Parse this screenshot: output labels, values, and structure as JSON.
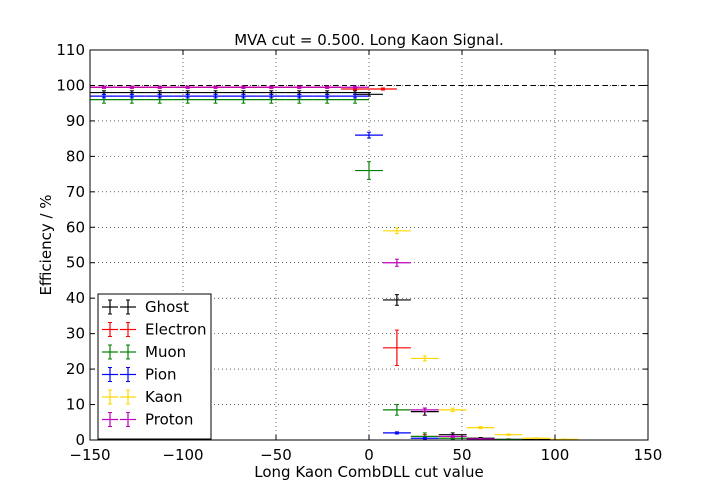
{
  "chart_data": {
    "type": "scatter",
    "title": "MVA cut = 0.500. Long Kaon Signal.",
    "xlabel": "Long Kaon CombDLL cut value",
    "ylabel": "Efficiency / %",
    "xlim": [
      -150,
      150
    ],
    "ylim": [
      0,
      110
    ],
    "xticks": [
      -150,
      -100,
      -50,
      0,
      50,
      100,
      150
    ],
    "yticks": [
      0,
      10,
      20,
      30,
      40,
      50,
      60,
      70,
      80,
      90,
      100,
      110
    ],
    "grid": true,
    "reference_line": {
      "y": 100,
      "style": "dashed"
    },
    "legend": {
      "position": "lower-left"
    },
    "bin_halfwidth": 7.5,
    "series": [
      {
        "name": "Ghost",
        "color": "#000000",
        "points": [
          {
            "x": -142.5,
            "y": 98,
            "ey": 0.5
          },
          {
            "x": -127.5,
            "y": 98,
            "ey": 0.5
          },
          {
            "x": -112.5,
            "y": 98,
            "ey": 0.5
          },
          {
            "x": -97.5,
            "y": 98,
            "ey": 0.5
          },
          {
            "x": -82.5,
            "y": 98,
            "ey": 0.5
          },
          {
            "x": -67.5,
            "y": 98,
            "ey": 0.5
          },
          {
            "x": -52.5,
            "y": 98,
            "ey": 0.5
          },
          {
            "x": -37.5,
            "y": 98,
            "ey": 0.5
          },
          {
            "x": -22.5,
            "y": 98,
            "ey": 0.5
          },
          {
            "x": -7.5,
            "y": 98,
            "ey": 0.5
          },
          {
            "x": 0,
            "y": 97.5,
            "ey": 0.5
          },
          {
            "x": 15,
            "y": 39.5,
            "ey": 1.5
          },
          {
            "x": 30,
            "y": 8,
            "ey": 1
          },
          {
            "x": 45,
            "y": 1.5,
            "ey": 0.5
          },
          {
            "x": 60,
            "y": 0.5,
            "ey": 0.2
          },
          {
            "x": 75,
            "y": 0.2,
            "ey": 0.1
          },
          {
            "x": 90,
            "y": 0.1,
            "ey": 0.05
          }
        ]
      },
      {
        "name": "Electron",
        "color": "#ff0000",
        "points": [
          {
            "x": -142.5,
            "y": 99.5,
            "ey": 0.3
          },
          {
            "x": -127.5,
            "y": 99.5,
            "ey": 0.3
          },
          {
            "x": -112.5,
            "y": 99.5,
            "ey": 0.3
          },
          {
            "x": -97.5,
            "y": 99.5,
            "ey": 0.3
          },
          {
            "x": -82.5,
            "y": 99.5,
            "ey": 0.3
          },
          {
            "x": -67.5,
            "y": 99.5,
            "ey": 0.3
          },
          {
            "x": -52.5,
            "y": 99.5,
            "ey": 0.3
          },
          {
            "x": -37.5,
            "y": 99.5,
            "ey": 0.3
          },
          {
            "x": -22.5,
            "y": 99.5,
            "ey": 0.3
          },
          {
            "x": -7.5,
            "y": 99,
            "ey": 0.3
          },
          {
            "x": 7.5,
            "y": 99,
            "ey": 0.3
          },
          {
            "x": 15,
            "y": 26,
            "ey": 5
          },
          {
            "x": 30,
            "y": 1,
            "ey": 0.5
          }
        ]
      },
      {
        "name": "Muon",
        "color": "#008000",
        "points": [
          {
            "x": -142.5,
            "y": 96,
            "ey": 1
          },
          {
            "x": -127.5,
            "y": 96,
            "ey": 1
          },
          {
            "x": -112.5,
            "y": 96,
            "ey": 1
          },
          {
            "x": -97.5,
            "y": 96,
            "ey": 1
          },
          {
            "x": -82.5,
            "y": 96,
            "ey": 1
          },
          {
            "x": -67.5,
            "y": 96,
            "ey": 1
          },
          {
            "x": -52.5,
            "y": 96,
            "ey": 1
          },
          {
            "x": -37.5,
            "y": 96,
            "ey": 1
          },
          {
            "x": -22.5,
            "y": 96,
            "ey": 1
          },
          {
            "x": -7.5,
            "y": 96,
            "ey": 1
          },
          {
            "x": 0,
            "y": 76,
            "ey": 2.5
          },
          {
            "x": 15,
            "y": 8.5,
            "ey": 1.5
          },
          {
            "x": 30,
            "y": 1,
            "ey": 1
          },
          {
            "x": 45,
            "y": 0.5,
            "ey": 0.3
          },
          {
            "x": 60,
            "y": 0.2,
            "ey": 0.2
          },
          {
            "x": 75,
            "y": 0.1,
            "ey": 0.1
          }
        ]
      },
      {
        "name": "Pion",
        "color": "#0000ff",
        "points": [
          {
            "x": -142.5,
            "y": 97,
            "ey": 0.5
          },
          {
            "x": -127.5,
            "y": 97,
            "ey": 0.5
          },
          {
            "x": -112.5,
            "y": 97,
            "ey": 0.5
          },
          {
            "x": -97.5,
            "y": 97,
            "ey": 0.5
          },
          {
            "x": -82.5,
            "y": 97,
            "ey": 0.5
          },
          {
            "x": -67.5,
            "y": 97,
            "ey": 0.5
          },
          {
            "x": -52.5,
            "y": 97,
            "ey": 0.5
          },
          {
            "x": -37.5,
            "y": 97,
            "ey": 0.5
          },
          {
            "x": -22.5,
            "y": 97,
            "ey": 0.5
          },
          {
            "x": -7.5,
            "y": 97,
            "ey": 0.5
          },
          {
            "x": 0,
            "y": 86,
            "ey": 0.8
          },
          {
            "x": 15,
            "y": 2,
            "ey": 0.3
          },
          {
            "x": 30,
            "y": 0.5,
            "ey": 0.2
          }
        ]
      },
      {
        "name": "Kaon",
        "color": "#ffd700",
        "points": [
          {
            "x": 15,
            "y": 59,
            "ey": 0.8
          },
          {
            "x": 30,
            "y": 23,
            "ey": 0.7
          },
          {
            "x": 45,
            "y": 8.5,
            "ey": 0.5
          },
          {
            "x": 60,
            "y": 3.5,
            "ey": 0.3
          },
          {
            "x": 75,
            "y": 1.5,
            "ey": 0.2
          },
          {
            "x": 90,
            "y": 0.5,
            "ey": 0.1
          },
          {
            "x": 105,
            "y": 0.2,
            "ey": 0.1
          }
        ]
      },
      {
        "name": "Proton",
        "color": "#bf00bf",
        "points": [
          {
            "x": -142.5,
            "y": 99.5,
            "ey": 0.3
          },
          {
            "x": -127.5,
            "y": 99.5,
            "ey": 0.3
          },
          {
            "x": -112.5,
            "y": 99.5,
            "ey": 0.3
          },
          {
            "x": -97.5,
            "y": 99.5,
            "ey": 0.3
          },
          {
            "x": -82.5,
            "y": 99.5,
            "ey": 0.3
          },
          {
            "x": -67.5,
            "y": 99.5,
            "ey": 0.3
          },
          {
            "x": -52.5,
            "y": 99.5,
            "ey": 0.3
          },
          {
            "x": -37.5,
            "y": 99.5,
            "ey": 0.3
          },
          {
            "x": -22.5,
            "y": 99.5,
            "ey": 0.3
          },
          {
            "x": -7.5,
            "y": 99.5,
            "ey": 0.3
          },
          {
            "x": 15,
            "y": 50,
            "ey": 1
          },
          {
            "x": 30,
            "y": 8.5,
            "ey": 0.5
          },
          {
            "x": 45,
            "y": 1,
            "ey": 0.3
          },
          {
            "x": 60,
            "y": 0.3,
            "ey": 0.1
          }
        ]
      }
    ]
  }
}
